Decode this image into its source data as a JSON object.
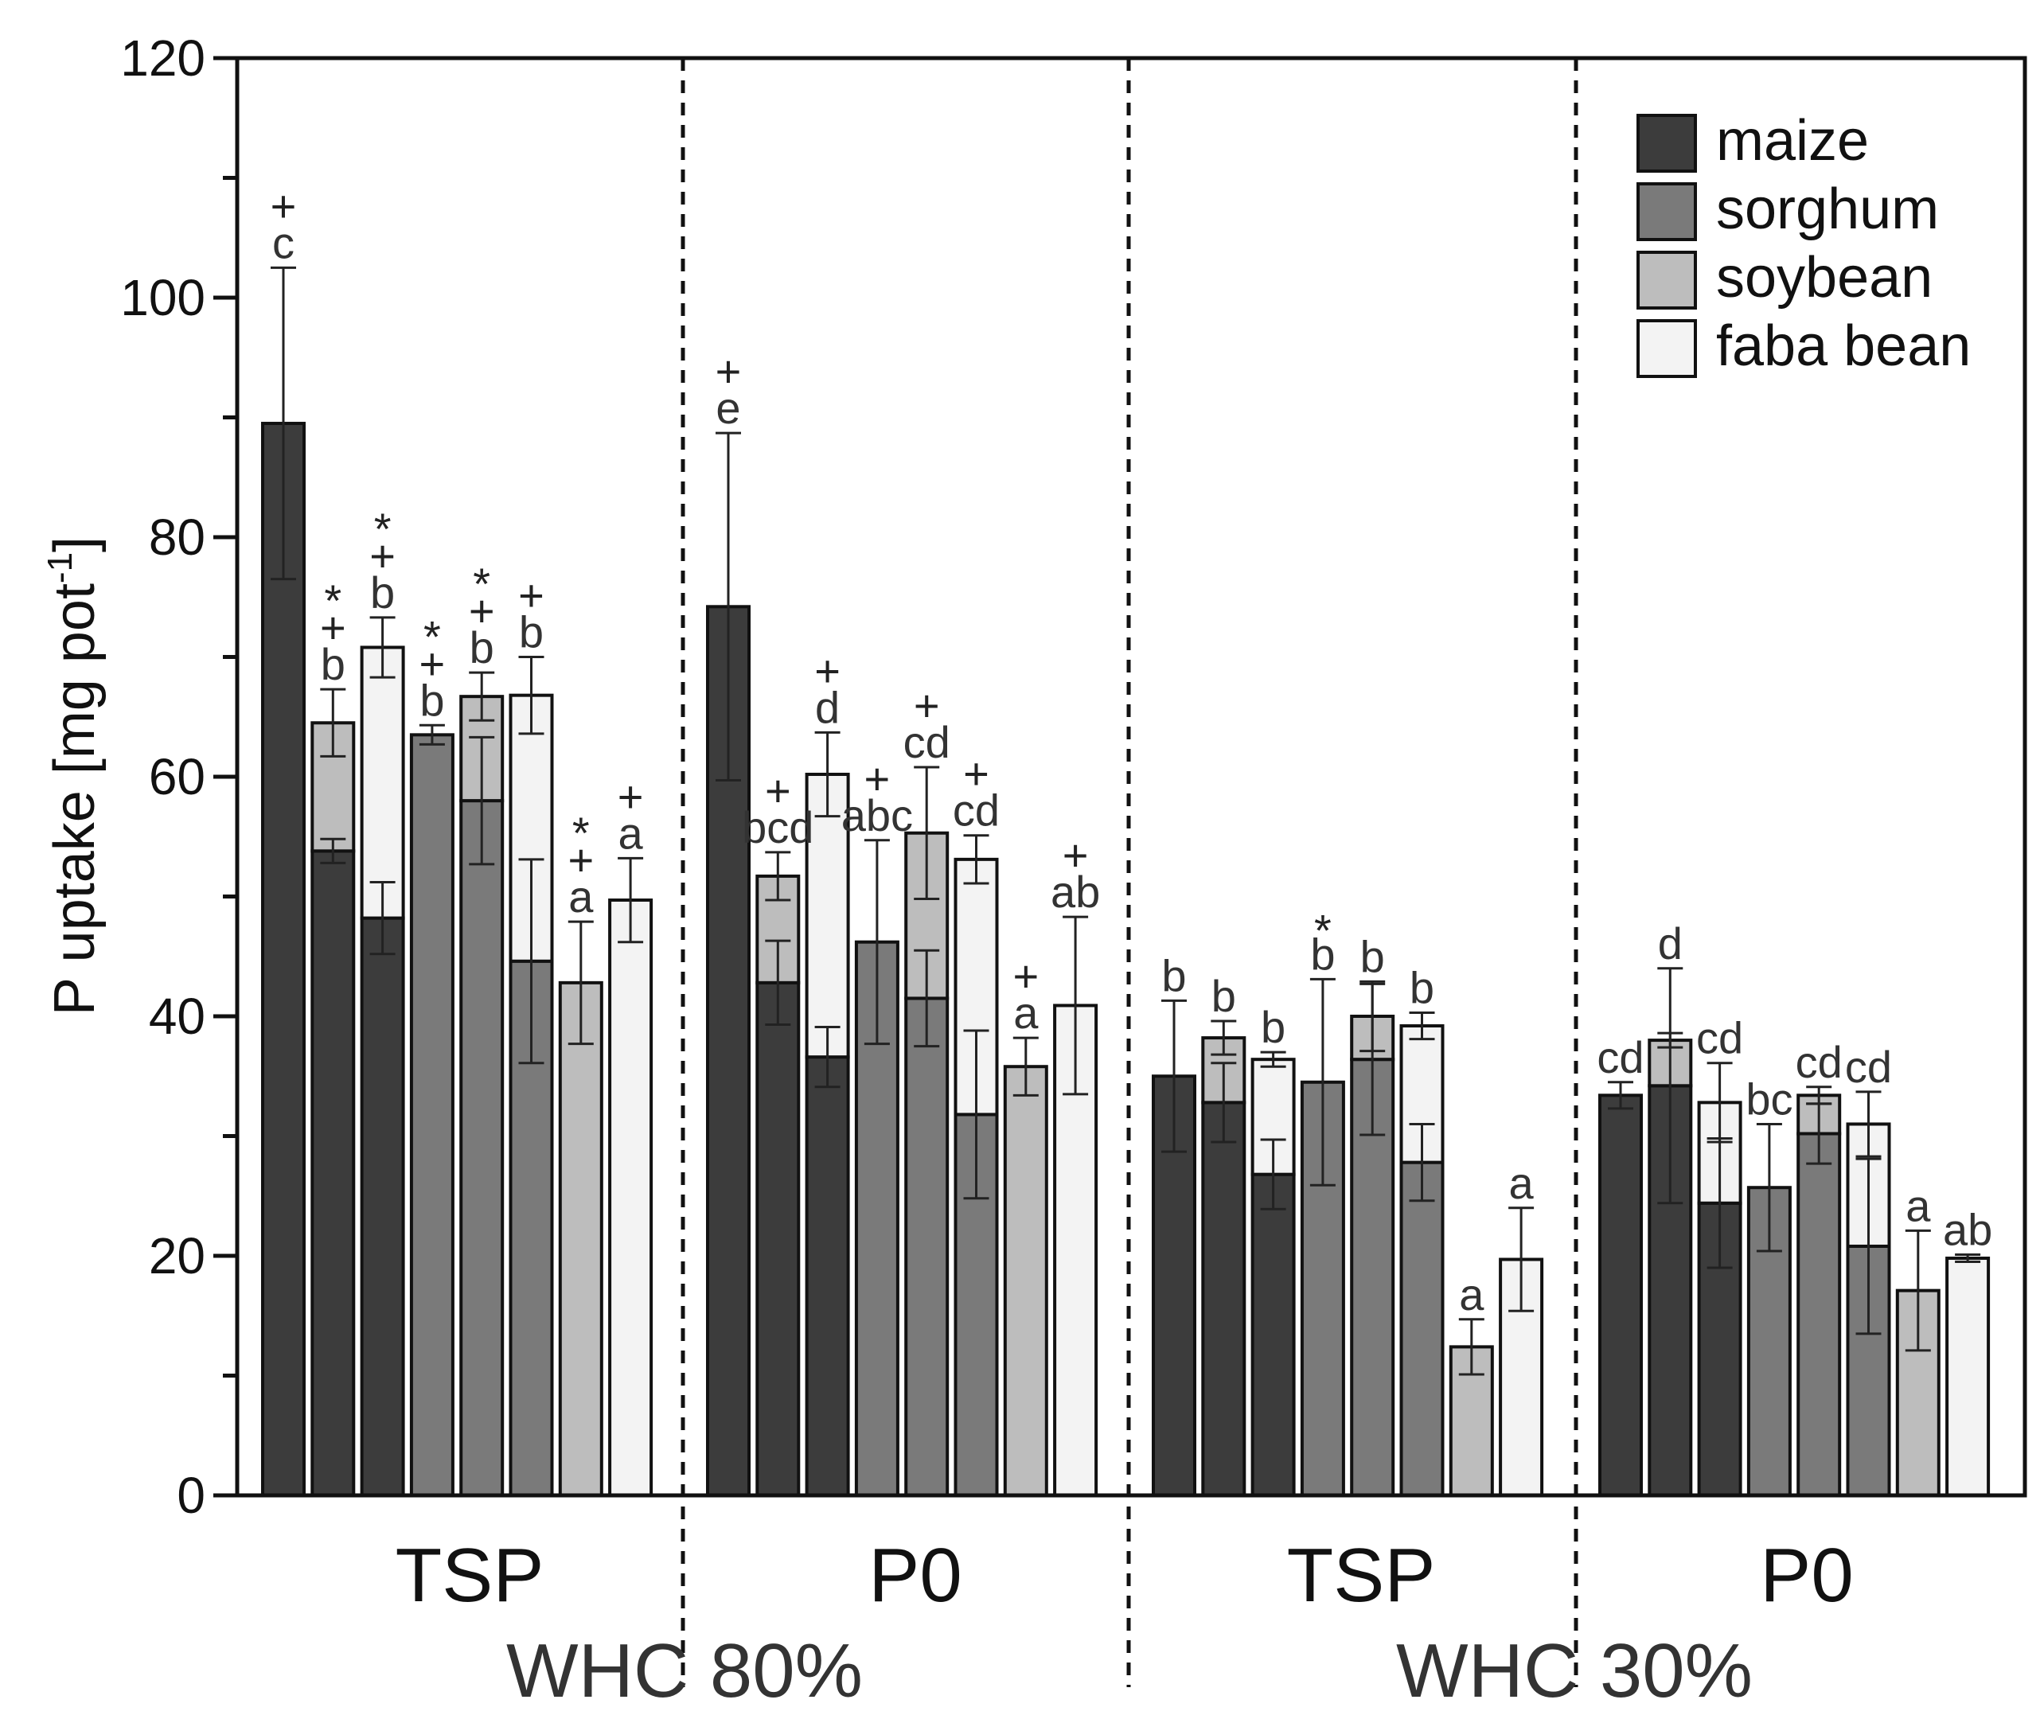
{
  "chart_data": {
    "type": "bar",
    "title": "",
    "xlabel": "",
    "ylabel": "P uptake [mg pot",
    "ylabel_superscript": "-1",
    "ylabel_suffix": "]",
    "ylim": [
      0,
      120
    ],
    "yticks": [
      "0",
      "20",
      "40",
      "60",
      "80",
      "100",
      "120"
    ],
    "legend_position": "top-right",
    "series": [
      {
        "name": "maize",
        "color": "#3c3c3c"
      },
      {
        "name": "sorghum",
        "color": "#7a7a7a"
      },
      {
        "name": "soybean",
        "color": "#bdbdbd"
      },
      {
        "name": "faba bean",
        "color": "#f3f3f3"
      }
    ],
    "groups": [
      {
        "label": "TSP",
        "condition": "WHC 80%"
      },
      {
        "label": "P0",
        "condition": "WHC 80%"
      },
      {
        "label": "TSP",
        "condition": "WHC 30%"
      },
      {
        "label": "P0",
        "condition": "WHC 30%"
      }
    ],
    "condition_labels": [
      "WHC 80%",
      "WHC 30%"
    ],
    "bars": [
      {
        "group": 0,
        "segments": [
          {
            "crop": "maize",
            "value": 89.5,
            "err": 13
          }
        ],
        "letter": "c",
        "symbols": [
          "+"
        ]
      },
      {
        "group": 0,
        "segments": [
          {
            "crop": "maize",
            "value": 53.8,
            "err": 1
          },
          {
            "crop": "soybean",
            "value": 10.7,
            "err": 2.8
          }
        ],
        "letter": "b",
        "symbols": [
          "*",
          "+"
        ]
      },
      {
        "group": 0,
        "segments": [
          {
            "crop": "maize",
            "value": 48.2,
            "err": 3
          },
          {
            "crop": "faba bean",
            "value": 22.6,
            "err": 2.5
          }
        ],
        "letter": "b",
        "symbols": [
          "*",
          "+"
        ]
      },
      {
        "group": 0,
        "segments": [
          {
            "crop": "sorghum",
            "value": 63.5,
            "err": 0.8
          }
        ],
        "letter": "b",
        "symbols": [
          "*",
          "+"
        ]
      },
      {
        "group": 0,
        "segments": [
          {
            "crop": "sorghum",
            "value": 58,
            "err": 5.3
          },
          {
            "crop": "soybean",
            "value": 8.7,
            "err": 2
          }
        ],
        "letter": "b",
        "symbols": [
          "*",
          "+"
        ]
      },
      {
        "group": 0,
        "segments": [
          {
            "crop": "sorghum",
            "value": 44.6,
            "err": 8.5
          },
          {
            "crop": "faba bean",
            "value": 22.2,
            "err": 3.2
          }
        ],
        "letter": "b",
        "symbols": [
          "+"
        ]
      },
      {
        "group": 0,
        "segments": [
          {
            "crop": "soybean",
            "value": 42.8,
            "err": 5.1
          }
        ],
        "letter": "a",
        "symbols": [
          "*",
          "+"
        ]
      },
      {
        "group": 0,
        "segments": [
          {
            "crop": "faba bean",
            "value": 49.7,
            "err": 3.5
          }
        ],
        "letter": "a",
        "symbols": [
          "+"
        ]
      },
      {
        "group": 1,
        "segments": [
          {
            "crop": "maize",
            "value": 74.2,
            "err": 14.5
          }
        ],
        "letter": "e",
        "symbols": [
          "+"
        ]
      },
      {
        "group": 1,
        "segments": [
          {
            "crop": "maize",
            "value": 42.8,
            "err": 3.5
          },
          {
            "crop": "soybean",
            "value": 8.9,
            "err": 2
          }
        ],
        "letter": "bcd",
        "symbols": [
          "+"
        ]
      },
      {
        "group": 1,
        "segments": [
          {
            "crop": "maize",
            "value": 36.6,
            "err": 2.5
          },
          {
            "crop": "faba bean",
            "value": 23.6,
            "err": 3.5
          }
        ],
        "letter": "d",
        "symbols": [
          "+"
        ]
      },
      {
        "group": 1,
        "segments": [
          {
            "crop": "sorghum",
            "value": 46.2,
            "err": 8.5
          }
        ],
        "letter": "abc",
        "symbols": [
          "+"
        ]
      },
      {
        "group": 1,
        "segments": [
          {
            "crop": "sorghum",
            "value": 41.5,
            "err": 4
          },
          {
            "crop": "soybean",
            "value": 13.8,
            "err": 5.5
          }
        ],
        "letter": "cd",
        "symbols": [
          "+"
        ]
      },
      {
        "group": 1,
        "segments": [
          {
            "crop": "sorghum",
            "value": 31.8,
            "err": 7
          },
          {
            "crop": "faba bean",
            "value": 21.3,
            "err": 2
          }
        ],
        "letter": "cd",
        "symbols": [
          "+"
        ]
      },
      {
        "group": 1,
        "segments": [
          {
            "crop": "soybean",
            "value": 35.8,
            "err": 2.4
          }
        ],
        "letter": "a",
        "symbols": [
          "+"
        ]
      },
      {
        "group": 1,
        "segments": [
          {
            "crop": "faba bean",
            "value": 40.9,
            "err": 7.4
          }
        ],
        "letter": "ab",
        "symbols": [
          "+"
        ]
      },
      {
        "group": 2,
        "segments": [
          {
            "crop": "maize",
            "value": 35,
            "err": 6.3
          }
        ],
        "letter": "b",
        "symbols": []
      },
      {
        "group": 2,
        "segments": [
          {
            "crop": "maize",
            "value": 32.8,
            "err": 3.3
          },
          {
            "crop": "soybean",
            "value": 5.4,
            "err": 1.4
          }
        ],
        "letter": "b",
        "symbols": []
      },
      {
        "group": 2,
        "segments": [
          {
            "crop": "maize",
            "value": 26.8,
            "err": 2.9
          },
          {
            "crop": "faba bean",
            "value": 9.6,
            "err": 0.6
          }
        ],
        "letter": "b",
        "symbols": []
      },
      {
        "group": 2,
        "segments": [
          {
            "crop": "sorghum",
            "value": 34.5,
            "err": 8.6
          }
        ],
        "letter": "b",
        "symbols": [
          "*"
        ]
      },
      {
        "group": 2,
        "segments": [
          {
            "crop": "sorghum",
            "value": 36.4,
            "err": 6.3
          },
          {
            "crop": "soybean",
            "value": 3.6,
            "err": 2.9
          }
        ],
        "letter": "b",
        "symbols": []
      },
      {
        "group": 2,
        "segments": [
          {
            "crop": "sorghum",
            "value": 27.8,
            "err": 3.2
          },
          {
            "crop": "faba bean",
            "value": 11.4,
            "err": 1.1
          }
        ],
        "letter": "b",
        "symbols": []
      },
      {
        "group": 2,
        "segments": [
          {
            "crop": "soybean",
            "value": 12.4,
            "err": 2.3
          }
        ],
        "letter": "a",
        "symbols": []
      },
      {
        "group": 2,
        "segments": [
          {
            "crop": "faba bean",
            "value": 19.7,
            "err": 4.3
          }
        ],
        "letter": "a",
        "symbols": []
      },
      {
        "group": 3,
        "segments": [
          {
            "crop": "maize",
            "value": 33.4,
            "err": 1.1
          }
        ],
        "letter": "cd",
        "symbols": []
      },
      {
        "group": 3,
        "segments": [
          {
            "crop": "maize",
            "value": 34.2,
            "err": 9.8
          },
          {
            "crop": "soybean",
            "value": 3.8,
            "err": 0.6
          }
        ],
        "letter": "d",
        "symbols": []
      },
      {
        "group": 3,
        "segments": [
          {
            "crop": "maize",
            "value": 24.4,
            "err": 5.4
          },
          {
            "crop": "faba bean",
            "value": 8.4,
            "err": 3.3
          }
        ],
        "letter": "cd",
        "symbols": []
      },
      {
        "group": 3,
        "segments": [
          {
            "crop": "sorghum",
            "value": 25.7,
            "err": 5.3
          }
        ],
        "letter": "bc",
        "symbols": []
      },
      {
        "group": 3,
        "segments": [
          {
            "crop": "sorghum",
            "value": 30.2,
            "err": 2.5
          },
          {
            "crop": "soybean",
            "value": 3.2,
            "err": 0.7
          }
        ],
        "letter": "cd",
        "symbols": []
      },
      {
        "group": 3,
        "segments": [
          {
            "crop": "sorghum",
            "value": 20.8,
            "err": 7.3
          },
          {
            "crop": "faba bean",
            "value": 10.2,
            "err": 2.7
          }
        ],
        "letter": "cd",
        "symbols": []
      },
      {
        "group": 3,
        "segments": [
          {
            "crop": "soybean",
            "value": 17.1,
            "err": 5
          }
        ],
        "letter": "a",
        "symbols": []
      },
      {
        "group": 3,
        "segments": [
          {
            "crop": "faba bean",
            "value": 19.8,
            "err": 0.3
          }
        ],
        "letter": "ab",
        "symbols": []
      }
    ]
  }
}
